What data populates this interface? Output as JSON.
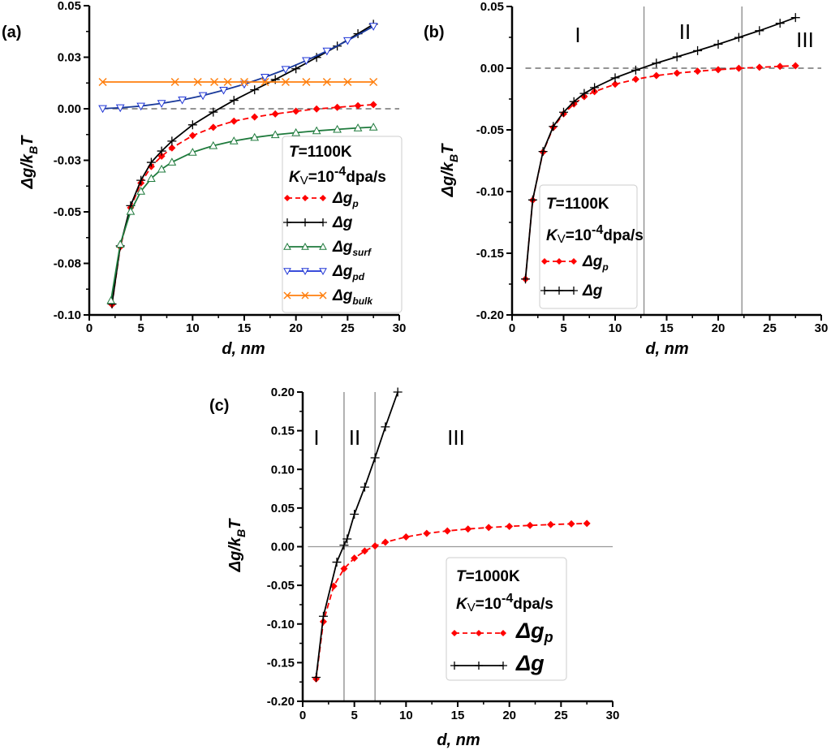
{
  "chart_data": [
    {
      "panel_label": "(a)",
      "type": "line",
      "xlabel": "d, nm",
      "ylabel": {
        "main": "Δg/k",
        "sub": "B",
        "tail": "T"
      },
      "xlim": [
        0,
        30
      ],
      "ylim": [
        -0.1,
        0.05
      ],
      "xticks": {
        "values": [
          0,
          5,
          10,
          15,
          20,
          25,
          30
        ],
        "labels": [
          "0",
          "5",
          "10",
          "15",
          "20",
          "25",
          "30"
        ]
      },
      "yticks": {
        "values": [
          0.05,
          0.025,
          0,
          -0.025,
          -0.05,
          -0.075,
          -0.1
        ],
        "labels": [
          "0.05",
          "0.03",
          "0.00",
          "-0.03",
          "-0.05",
          "-0.08",
          "-0.10"
        ]
      },
      "zero_line": "dashed",
      "region_boundaries": [],
      "region_labels": [],
      "legend": {
        "placement": "bottom-right",
        "T_label": "T",
        "T_value": "=1100K",
        "K_label": "K",
        "K_sub": "V",
        "K_value": "=10",
        "K_exp": "-4",
        "K_unit": "dpa/s"
      },
      "series": [
        {
          "name": "Δg",
          "sub": "p",
          "color": "#ff0000",
          "marker": "diamond",
          "dash": true,
          "x": [
            2.2,
            3,
            4,
            5,
            6,
            7,
            8,
            10,
            12,
            14,
            16,
            18,
            20,
            22,
            24,
            26,
            27.5
          ],
          "y": [
            -0.095,
            -0.067,
            -0.048,
            -0.036,
            -0.028,
            -0.023,
            -0.019,
            -0.013,
            -0.009,
            -0.006,
            -0.004,
            -0.0025,
            -0.0012,
            -0.0001,
            0.0007,
            0.0015,
            0.002
          ]
        },
        {
          "name": "Δg",
          "sub": "",
          "color": "#000000",
          "marker": "plus",
          "dash": false,
          "x": [
            2.2,
            3,
            4,
            5,
            6,
            7,
            8,
            10,
            12,
            14,
            16,
            18,
            20,
            22,
            24,
            26,
            27.5
          ],
          "y": [
            -0.0947,
            -0.0665,
            -0.047,
            -0.0347,
            -0.026,
            -0.0205,
            -0.0157,
            -0.0078,
            -0.0016,
            0.0041,
            0.0092,
            0.0142,
            0.0194,
            0.0249,
            0.0304,
            0.0364,
            0.041
          ]
        },
        {
          "name": "Δg",
          "sub": "surf",
          "color": "#1e7a3c",
          "marker": "triangle-up",
          "dash": false,
          "x": [
            2.1,
            3,
            4,
            5,
            6,
            7,
            8,
            10,
            12,
            14,
            16,
            18,
            20,
            22,
            24,
            26,
            27.5
          ],
          "y": [
            -0.093,
            -0.0657,
            -0.0498,
            -0.04,
            -0.0338,
            -0.0293,
            -0.0259,
            -0.0211,
            -0.0179,
            -0.0156,
            -0.0139,
            -0.0126,
            -0.0116,
            -0.0107,
            -0.01,
            -0.0093,
            -0.0089
          ]
        },
        {
          "name": "Δg",
          "sub": "pd",
          "color": "#1f35d6",
          "marker": "triangle-down",
          "dash": false,
          "x": [
            1.3,
            3,
            5,
            7,
            9,
            11,
            13,
            15,
            17,
            19,
            21,
            23,
            25,
            27.5
          ],
          "y": [
            0.0001,
            0.0005,
            0.0013,
            0.0026,
            0.0043,
            0.0064,
            0.009,
            0.0119,
            0.0153,
            0.0191,
            0.0234,
            0.028,
            0.0331,
            0.04
          ]
        },
        {
          "name": "Δg",
          "sub": "bulk",
          "color": "#ff7f0e",
          "marker": "x",
          "dash": false,
          "x": [
            1.3,
            8.3,
            10.5,
            12.1,
            13.4,
            15,
            17,
            19,
            21,
            23,
            25,
            27.5
          ],
          "y": [
            0.013,
            0.013,
            0.013,
            0.013,
            0.013,
            0.013,
            0.013,
            0.013,
            0.013,
            0.013,
            0.013,
            0.013
          ]
        }
      ]
    },
    {
      "panel_label": "(b)",
      "type": "line",
      "xlabel": "d, nm",
      "ylabel": {
        "main": "Δg/k",
        "sub": "B",
        "tail": "T"
      },
      "xlim": [
        0,
        30
      ],
      "ylim": [
        -0.2,
        0.05
      ],
      "xticks": {
        "values": [
          0,
          5,
          10,
          15,
          20,
          25,
          30
        ],
        "labels": [
          "0",
          "5",
          "10",
          "15",
          "20",
          "25",
          "30"
        ]
      },
      "yticks": {
        "values": [
          0.05,
          0,
          -0.05,
          -0.1,
          -0.15,
          -0.2
        ],
        "labels": [
          "0.05",
          "0.00",
          "-0.05",
          "-0.10",
          "-0.15",
          "-0.20"
        ]
      },
      "zero_line": "dashed",
      "region_boundaries": [
        12.8,
        22.3
      ],
      "region_labels": [
        "I",
        "II",
        "III"
      ],
      "legend": {
        "placement": "bottom-left",
        "T_label": "T",
        "T_value": "=1100K",
        "K_label": "K",
        "K_sub": "V",
        "K_value": "=10",
        "K_exp": "-4",
        "K_unit": "dpa/s"
      },
      "series": [
        {
          "name": "Δg",
          "sub": "p",
          "color": "#ff0000",
          "marker": "diamond",
          "dash": true,
          "x": [
            1.3,
            2,
            3,
            4,
            5,
            6,
            7,
            8,
            10,
            12,
            14,
            16,
            18,
            20,
            22,
            24,
            26,
            27.5
          ],
          "y": [
            -0.171,
            -0.107,
            -0.068,
            -0.048,
            -0.037,
            -0.029,
            -0.023,
            -0.019,
            -0.013,
            -0.009,
            -0.006,
            -0.004,
            -0.0025,
            -0.0012,
            -0.0001,
            0.0007,
            0.0015,
            0.002
          ]
        },
        {
          "name": "Δg",
          "sub": "",
          "color": "#000000",
          "marker": "plus",
          "dash": false,
          "x": [
            1.3,
            2,
            3,
            4,
            5,
            6,
            7,
            8,
            10,
            12,
            14,
            16,
            18,
            20,
            22,
            24,
            26,
            27.5
          ],
          "y": [
            -0.1709,
            -0.1068,
            -0.0675,
            -0.0472,
            -0.0357,
            -0.0271,
            -0.0205,
            -0.0157,
            -0.0078,
            -0.0016,
            0.0041,
            0.0092,
            0.0142,
            0.0194,
            0.0249,
            0.0304,
            0.0364,
            0.041
          ]
        }
      ]
    },
    {
      "panel_label": "(c)",
      "type": "line",
      "xlabel": "d, nm",
      "ylabel": {
        "main": "Δg/k",
        "sub": "B",
        "tail": "T"
      },
      "xlim": [
        0,
        30
      ],
      "ylim": [
        -0.2,
        0.2
      ],
      "xticks": {
        "values": [
          0,
          5,
          10,
          15,
          20,
          25,
          30
        ],
        "labels": [
          "0",
          "5",
          "10",
          "15",
          "20",
          "25",
          "30"
        ]
      },
      "yticks": {
        "values": [
          0.2,
          0.15,
          0.1,
          0.05,
          0,
          -0.05,
          -0.1,
          -0.15,
          -0.2
        ],
        "labels": [
          "0.20",
          "0.15",
          "0.10",
          "0.05",
          "0.00",
          "-0.05",
          "-0.10",
          "-0.15",
          "-0.20"
        ]
      },
      "zero_line": "solid",
      "region_boundaries": [
        4,
        7
      ],
      "region_labels": [
        "I",
        "II",
        "III"
      ],
      "legend": {
        "placement": "bottom-right",
        "T_label": "T",
        "T_value": "=1000K",
        "K_label": "K",
        "K_sub": "V",
        "K_value": "=10",
        "K_exp": "-4",
        "K_unit": "dpa/s"
      },
      "series": [
        {
          "name": "Δg",
          "sub": "p",
          "color": "#ff0000",
          "marker": "diamond",
          "dash": true,
          "x": [
            1.3,
            2,
            3,
            4,
            5,
            6,
            7,
            8,
            10,
            12,
            14,
            16,
            18,
            20,
            22,
            24,
            26,
            27.5
          ],
          "y": [
            -0.171,
            -0.097,
            -0.051,
            -0.0285,
            -0.0148,
            -0.0057,
            0.0009,
            0.0058,
            0.0126,
            0.0172,
            0.0204,
            0.0229,
            0.0248,
            0.0263,
            0.0275,
            0.0286,
            0.0295,
            0.03
          ]
        },
        {
          "name": "Δg",
          "sub": "",
          "color": "#000000",
          "marker": "plus",
          "dash": false,
          "x": [
            1.3,
            2,
            3.3,
            4,
            4.3,
            5,
            6,
            7,
            8,
            9.2
          ],
          "y": [
            -0.169,
            -0.09,
            -0.02,
            0.002,
            0.01,
            0.042,
            0.077,
            0.115,
            0.155,
            0.2
          ]
        }
      ]
    }
  ]
}
